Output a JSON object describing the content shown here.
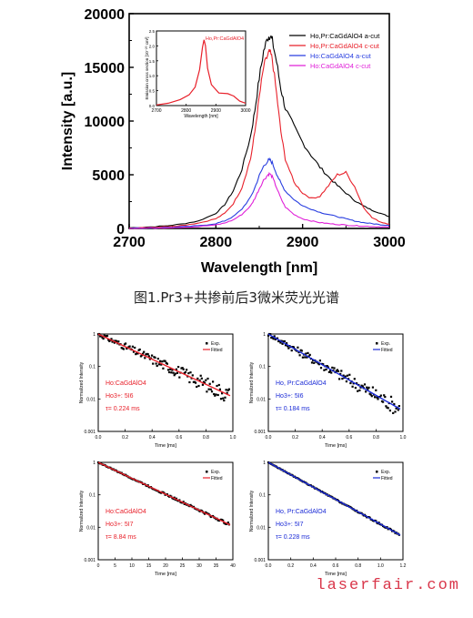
{
  "caption": "图1.Pr3+共掺前后3微米荧光光谱",
  "watermark": "laserfair.com",
  "chart_data": [
    {
      "type": "line",
      "xlabel": "Wavelength [nm]",
      "ylabel": "Intensity [a.u.]",
      "xlim": [
        2700,
        3000
      ],
      "ylim": [
        0,
        20000
      ],
      "xticks": [
        "2700",
        "2800",
        "2900",
        "3000"
      ],
      "yticks": [
        "0",
        "5000",
        "10000",
        "15000",
        "20000"
      ],
      "legend_position": "top-right",
      "x": [
        2700,
        2720,
        2740,
        2760,
        2780,
        2800,
        2810,
        2820,
        2830,
        2840,
        2845,
        2850,
        2855,
        2860,
        2862,
        2865,
        2870,
        2875,
        2880,
        2890,
        2900,
        2910,
        2920,
        2930,
        2940,
        2950,
        2960,
        2970,
        2980,
        2990,
        3000
      ],
      "series": [
        {
          "name": "Ho,Pr:CaGdAlO4 a-cut",
          "color": "#000000",
          "values": [
            60,
            120,
            220,
            400,
            700,
            1400,
            2200,
            3500,
            5500,
            8600,
            11000,
            14000,
            16500,
            17800,
            18000,
            17500,
            15500,
            13000,
            11200,
            9500,
            8000,
            6800,
            5700,
            4800,
            4000,
            3300,
            2600,
            2100,
            1700,
            1400,
            1100
          ]
        },
        {
          "name": "Ho,Pr:CaGdAlO4 c-cut",
          "color": "#e8202a",
          "values": [
            40,
            90,
            160,
            280,
            500,
            900,
            1400,
            2300,
            3800,
            6500,
            9000,
            12200,
            15000,
            16200,
            16400,
            15800,
            12500,
            9000,
            6500,
            4300,
            3300,
            2800,
            3000,
            4000,
            5000,
            5200,
            3900,
            2000,
            1000,
            600,
            400
          ]
        },
        {
          "name": "Ho:CaGdAlO4 a-cut",
          "color": "#2a3fe0",
          "values": [
            20,
            40,
            80,
            150,
            250,
            450,
            700,
            1100,
            1800,
            2900,
            3800,
            4900,
            5800,
            6300,
            6400,
            6100,
            5100,
            4200,
            3500,
            2700,
            2100,
            1800,
            1500,
            1300,
            1100,
            900,
            700,
            550,
            450,
            350,
            300
          ]
        },
        {
          "name": "Ho:CaGdAlO4 c-cut",
          "color": "#e020d8",
          "values": [
            10,
            30,
            60,
            110,
            180,
            320,
            500,
            800,
            1300,
            2100,
            2800,
            3700,
            4500,
            5000,
            5100,
            4800,
            3800,
            2800,
            2000,
            1300,
            900,
            700,
            550,
            450,
            380,
            320,
            260,
            220,
            180,
            150,
            120
          ]
        }
      ],
      "inset": {
        "type": "line",
        "title": "Ho,Pr:CaGdAlO4",
        "ylabel": "Emission cross section [10⁻²⁰ cm²]",
        "xlabel": "Wavelength [nm]",
        "xticks": [
          "2700",
          "2800",
          "2900",
          "3000"
        ],
        "yticks": [
          "0.0",
          "0.5",
          "1.0",
          "1.5",
          "2.0",
          "2.5"
        ],
        "xlim": [
          2700,
          3000
        ],
        "ylim": [
          0,
          2.5
        ],
        "x": [
          2700,
          2740,
          2780,
          2810,
          2830,
          2845,
          2855,
          2860,
          2865,
          2872,
          2885,
          2910,
          2940,
          2960,
          2980,
          3000
        ],
        "values": [
          0.02,
          0.08,
          0.2,
          0.36,
          0.62,
          1.2,
          1.95,
          2.2,
          2.0,
          1.25,
          0.7,
          0.42,
          0.4,
          0.32,
          0.15,
          0.08
        ],
        "color": "#e8202a"
      }
    },
    {
      "type": "scatter",
      "xlabel": "Time [ms]",
      "ylabel": "Normalized Intensity",
      "log_y": true,
      "xlim": [
        0,
        1.0
      ],
      "ylim": [
        0.001,
        1
      ],
      "xticks": [
        "0.0",
        "0.2",
        "0.4",
        "0.6",
        "0.8",
        "1.0"
      ],
      "yticks": [
        "1",
        "0.1",
        "0.01",
        "0.001"
      ],
      "legend": [
        "Exp.",
        "Fitted"
      ],
      "fit_color": "#e8202a",
      "text_color": "#e8202a",
      "labels": [
        "Ho:CaGdAlO4",
        "Ho3+: 5I6",
        "τ= 0.224 ms"
      ],
      "tau": 0.224,
      "noise": 0.3
    },
    {
      "type": "scatter",
      "xlabel": "Time [ms]",
      "ylabel": "Normalized Intensity",
      "log_y": true,
      "xlim": [
        0,
        1.0
      ],
      "ylim": [
        0.001,
        1
      ],
      "xticks": [
        "0.0",
        "0.2",
        "0.4",
        "0.6",
        "0.8",
        "1.0"
      ],
      "yticks": [
        "1",
        "0.1",
        "0.01",
        "0.001"
      ],
      "legend": [
        "Exp.",
        "Fitted"
      ],
      "fit_color": "#1a2ad6",
      "text_color": "#1a2ad6",
      "labels": [
        "Ho, Pr:CaGdAlO4",
        "Ho3+: 5I6",
        "τ= 0.184 ms"
      ],
      "tau": 0.184,
      "noise": 0.3
    },
    {
      "type": "scatter",
      "xlabel": "Time [ms]",
      "ylabel": "Normalized Intensity",
      "log_y": true,
      "xlim": [
        0,
        40
      ],
      "ylim": [
        0.001,
        1
      ],
      "xticks": [
        "0",
        "5",
        "10",
        "15",
        "20",
        "25",
        "30",
        "35",
        "40"
      ],
      "yticks": [
        "1",
        "0.1",
        "0.01",
        "0.001"
      ],
      "legend": [
        "Exp.",
        "Fitted"
      ],
      "fit_color": "#e8202a",
      "text_color": "#e8202a",
      "labels": [
        "Ho:CaGdAlO4",
        "Ho3+: 5I7",
        "τ= 8.84 ms"
      ],
      "tau": 8.84,
      "noise": 0.05
    },
    {
      "type": "scatter",
      "xlabel": "Time [ms]",
      "ylabel": "Normalized Intensity",
      "log_y": true,
      "xlim": [
        0,
        1.2
      ],
      "ylim": [
        0.001,
        1
      ],
      "xticks": [
        "0.0",
        "0.2",
        "0.4",
        "0.6",
        "0.8",
        "1.0",
        "1.2"
      ],
      "yticks": [
        "1",
        "0.1",
        "0.01",
        "0.001"
      ],
      "legend": [
        "Exp.",
        "Fitted"
      ],
      "fit_color": "#1a2ad6",
      "text_color": "#1a2ad6",
      "labels": [
        "Ho, Pr:CaGdAlO4",
        "Ho3+: 5I7",
        "τ= 0.228 ms"
      ],
      "tau": 0.228,
      "noise": 0.03
    }
  ]
}
